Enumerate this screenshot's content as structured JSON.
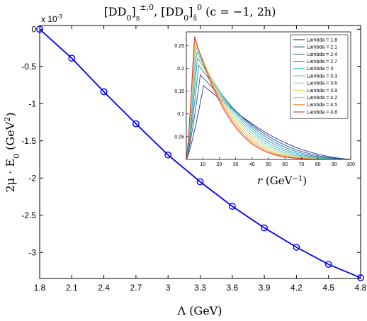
{
  "chart_data": [
    {
      "type": "line",
      "title": "[DD₀]ₛ^{±,0}, [DD₀]ₛ̄⁰ (c = −1, 2h)",
      "title_parts": {
        "a": "[DD",
        "a_sub": "0",
        "b": "]",
        "b_sub": "s",
        "b_sup": "±,0",
        "c": ", [DD",
        "c_sub": "0",
        "d": "]",
        "d_sub": "s̄",
        "d_sup": "0",
        "e": " (c = −1, 2h)"
      },
      "xlabel": "Λ (GeV)",
      "ylabel": "2μ · E₀ (GeV²)",
      "ylabel_parts": {
        "main": "2μ · E",
        "sub": "0",
        "unit": " (GeV",
        "unit_sup": "2",
        "unit_end": ")"
      },
      "y_multiplier": "x 10",
      "y_multiplier_exp": "-3",
      "xlim": [
        1.8,
        4.8
      ],
      "ylim": [
        -3.35,
        0.05
      ],
      "xticks": [
        "1.8",
        "2.1",
        "2.4",
        "2.7",
        "3",
        "3.3",
        "3.6",
        "3.9",
        "4.2",
        "4.5",
        "4.8"
      ],
      "yticks": [
        "0",
        "-0.5",
        "-1",
        "-1.5",
        "-2",
        "-2.5",
        "-3"
      ],
      "grid": false,
      "series": [
        {
          "color": "#0000ff",
          "marker": "circle",
          "x": [
            1.8,
            2.1,
            2.4,
            2.7,
            3.0,
            3.3,
            3.6,
            3.9,
            4.2,
            4.5,
            4.8
          ],
          "y": [
            0.0,
            -0.39,
            -0.84,
            -1.27,
            -1.69,
            -2.05,
            -2.38,
            -2.67,
            -2.93,
            -3.16,
            -3.34
          ]
        }
      ]
    },
    {
      "type": "line",
      "xlabel": "r (GeV⁻¹)",
      "xlabel_parts": {
        "main": "r",
        "unit": " (GeV",
        "unit_sup": "−1",
        "unit_end": ")"
      },
      "xlim": [
        0,
        100
      ],
      "ylim": [
        0,
        0.28
      ],
      "xticks": [
        "10",
        "20",
        "30",
        "40",
        "50",
        "60",
        "70",
        "80",
        "90",
        "100"
      ],
      "yticks": [
        "0.05",
        "0.1",
        "0.15",
        "0.2",
        "0.25"
      ],
      "legend_position": "top-right",
      "series": [
        {
          "name": "Lambda = 1.8",
          "color": "#2c2c8c",
          "peak_r": 10.5,
          "peak_val": 0.162
        },
        {
          "name": "Lambda = 2.1",
          "color": "#1f4f96",
          "peak_r": 8.5,
          "peak_val": 0.186
        },
        {
          "name": "Lambda = 2.4",
          "color": "#2b78a6",
          "peak_r": 7.5,
          "peak_val": 0.207
        },
        {
          "name": "Lambda = 2.7",
          "color": "#2f9ab6",
          "peak_r": 6.8,
          "peak_val": 0.224
        },
        {
          "name": "Lambda = 3",
          "color": "#33bcc8",
          "peak_r": 6.3,
          "peak_val": 0.237
        },
        {
          "name": "Lambda = 3.3",
          "color": "#66cdc4",
          "peak_r": 5.9,
          "peak_val": 0.247
        },
        {
          "name": "Lambda = 3.6",
          "color": "#a9d6a1",
          "peak_r": 5.6,
          "peak_val": 0.255
        },
        {
          "name": "Lambda = 3.9",
          "color": "#e2d56a",
          "peak_r": 5.4,
          "peak_val": 0.261
        },
        {
          "name": "Lambda = 4.2",
          "color": "#f2b042",
          "peak_r": 5.2,
          "peak_val": 0.265
        },
        {
          "name": "Lambda = 4.5",
          "color": "#ec7c2f",
          "peak_r": 5.0,
          "peak_val": 0.268
        },
        {
          "name": "Lambda = 4.8",
          "color": "#d9352a",
          "peak_r": 4.9,
          "peak_val": 0.271
        }
      ]
    }
  ]
}
